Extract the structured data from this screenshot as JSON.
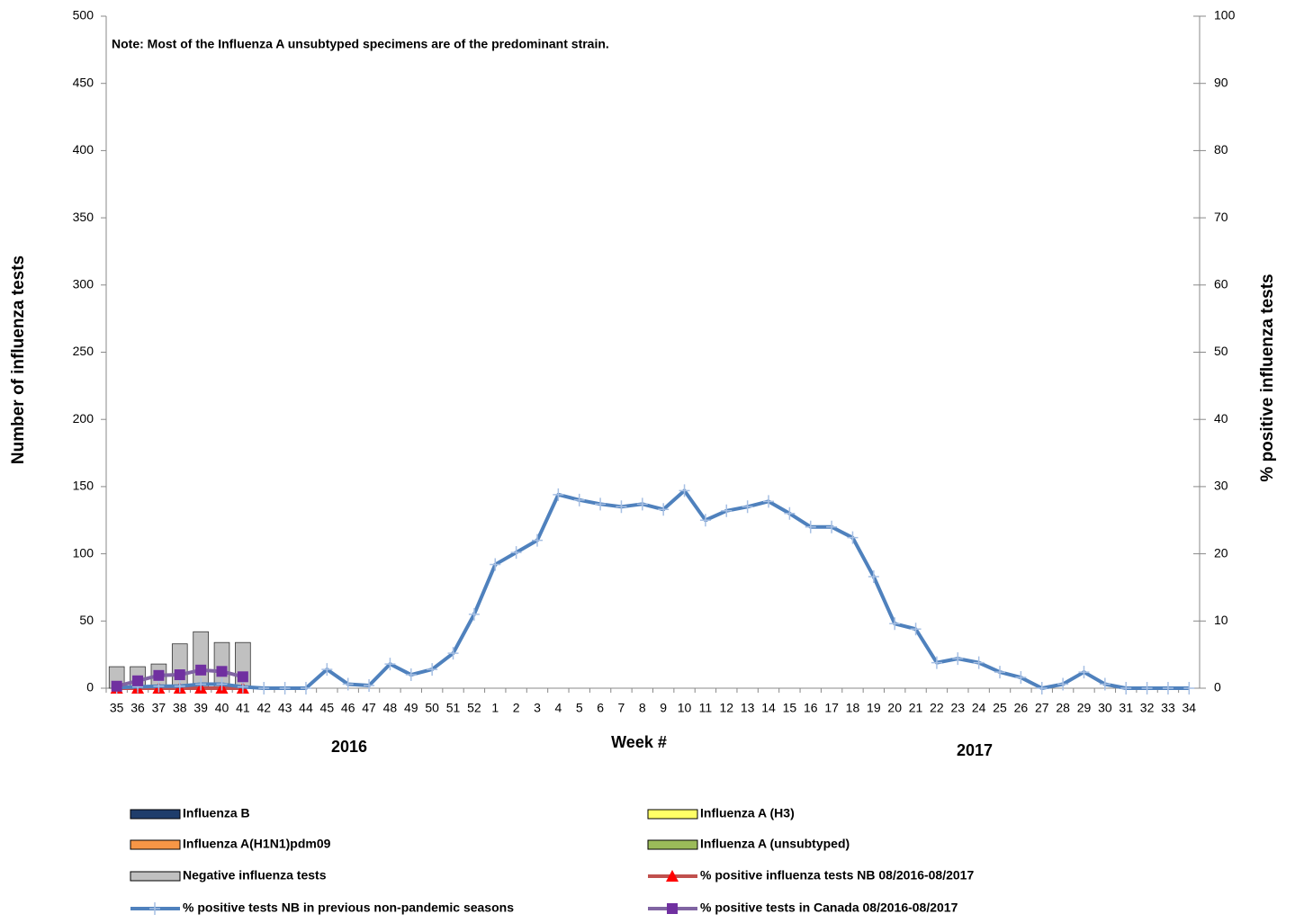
{
  "chart_data": {
    "type": "bar",
    "note": "Note: Most of the  Influenza A unsubtyped specimens are of the predominant strain.",
    "x_label": "Week #",
    "y_label": "Number of influenza tests",
    "y2_label": "% positive influenza tests",
    "year_labels": [
      "2016",
      "2017"
    ],
    "categories": [
      "35",
      "36",
      "37",
      "38",
      "39",
      "40",
      "41",
      "42",
      "43",
      "44",
      "45",
      "46",
      "47",
      "48",
      "49",
      "50",
      "51",
      "52",
      "1",
      "2",
      "3",
      "4",
      "5",
      "6",
      "7",
      "8",
      "9",
      "10",
      "11",
      "12",
      "13",
      "14",
      "15",
      "16",
      "17",
      "18",
      "19",
      "20",
      "21",
      "22",
      "23",
      "24",
      "25",
      "26",
      "27",
      "28",
      "29",
      "30",
      "31",
      "32",
      "33",
      "34"
    ],
    "ylim": [
      0,
      500
    ],
    "yticks": [
      0,
      50,
      100,
      150,
      200,
      250,
      300,
      350,
      400,
      450,
      500
    ],
    "y2lim": [
      0,
      100
    ],
    "y2ticks": [
      0,
      10,
      20,
      30,
      40,
      50,
      60,
      70,
      80,
      90,
      100
    ],
    "series": [
      {
        "name": "Influenza B",
        "type": "bar",
        "color": "#1f3d6b",
        "values": [
          0,
          0,
          0,
          0,
          0,
          0,
          0,
          null,
          null,
          null,
          null,
          null,
          null,
          null,
          null,
          null,
          null,
          null,
          null,
          null,
          null,
          null,
          null,
          null,
          null,
          null,
          null,
          null,
          null,
          null,
          null,
          null,
          null,
          null,
          null,
          null,
          null,
          null,
          null,
          null,
          null,
          null,
          null,
          null,
          null,
          null,
          null,
          null,
          null,
          null,
          null,
          null
        ]
      },
      {
        "name": "Influenza A (H3)",
        "type": "bar",
        "color": "#ffff66",
        "values": [
          0,
          0,
          0,
          0,
          0,
          0,
          0,
          null,
          null,
          null,
          null,
          null,
          null,
          null,
          null,
          null,
          null,
          null,
          null,
          null,
          null,
          null,
          null,
          null,
          null,
          null,
          null,
          null,
          null,
          null,
          null,
          null,
          null,
          null,
          null,
          null,
          null,
          null,
          null,
          null,
          null,
          null,
          null,
          null,
          null,
          null,
          null,
          null,
          null,
          null,
          null,
          null
        ]
      },
      {
        "name": "Influenza A(H1N1)pdm09",
        "type": "bar",
        "color": "#f79646",
        "values": [
          0,
          0,
          0,
          0,
          0,
          0,
          0,
          null,
          null,
          null,
          null,
          null,
          null,
          null,
          null,
          null,
          null,
          null,
          null,
          null,
          null,
          null,
          null,
          null,
          null,
          null,
          null,
          null,
          null,
          null,
          null,
          null,
          null,
          null,
          null,
          null,
          null,
          null,
          null,
          null,
          null,
          null,
          null,
          null,
          null,
          null,
          null,
          null,
          null,
          null,
          null,
          null
        ]
      },
      {
        "name": "Influenza A (unsubtyped)",
        "type": "bar",
        "color": "#9bbb59",
        "values": [
          0,
          0,
          0,
          0,
          0,
          0,
          0,
          null,
          null,
          null,
          null,
          null,
          null,
          null,
          null,
          null,
          null,
          null,
          null,
          null,
          null,
          null,
          null,
          null,
          null,
          null,
          null,
          null,
          null,
          null,
          null,
          null,
          null,
          null,
          null,
          null,
          null,
          null,
          null,
          null,
          null,
          null,
          null,
          null,
          null,
          null,
          null,
          null,
          null,
          null,
          null,
          null
        ]
      },
      {
        "name": "Negative influenza tests",
        "type": "bar",
        "color": "#c0c0c0",
        "values": [
          16,
          16,
          18,
          33,
          42,
          34,
          34,
          null,
          null,
          null,
          null,
          null,
          null,
          null,
          null,
          null,
          null,
          null,
          null,
          null,
          null,
          null,
          null,
          null,
          null,
          null,
          null,
          null,
          null,
          null,
          null,
          null,
          null,
          null,
          null,
          null,
          null,
          null,
          null,
          null,
          null,
          null,
          null,
          null,
          null,
          null,
          null,
          null,
          null,
          null,
          null,
          null
        ]
      },
      {
        "name": "% positive influenza tests NB 08/2016-08/2017",
        "type": "line",
        "axis": "y2",
        "color": "#c0504d",
        "marker": "triangle",
        "marker_color": "#ff0000",
        "values": [
          0,
          0,
          0,
          0,
          0,
          0,
          0,
          null,
          null,
          null,
          null,
          null,
          null,
          null,
          null,
          null,
          null,
          null,
          null,
          null,
          null,
          null,
          null,
          null,
          null,
          null,
          null,
          null,
          null,
          null,
          null,
          null,
          null,
          null,
          null,
          null,
          null,
          null,
          null,
          null,
          null,
          null,
          null,
          null,
          null,
          null,
          null,
          null,
          null,
          null,
          null,
          null
        ]
      },
      {
        "name": "% positive tests NB in previous non-pandemic seasons",
        "type": "line",
        "axis": "y2",
        "color": "#4f81bd",
        "marker": "plus",
        "marker_color": "#a6bfe3",
        "values": [
          0.1,
          0.2,
          0.3,
          0.3,
          0.6,
          0.6,
          0.2,
          0,
          0,
          0,
          2.8,
          0.6,
          0.4,
          3.6,
          2.0,
          2.8,
          5.2,
          11,
          18.4,
          20.2,
          22,
          28.8,
          28,
          27.4,
          27,
          27.4,
          26.6,
          29.4,
          25,
          26.4,
          27,
          27.8,
          26,
          24,
          24,
          22.4,
          16.6,
          9.6,
          8.8,
          3.8,
          4.4,
          3.8,
          2.4,
          1.6,
          0,
          0.6,
          2.4,
          0.6,
          0,
          0,
          0,
          0
        ]
      },
      {
        "name": "% positive tests  in Canada 08/2016-08/2017",
        "type": "line",
        "axis": "y2",
        "color": "#8064a2",
        "marker": "square",
        "marker_color": "#7030a0",
        "values": [
          0.3,
          1.1,
          1.9,
          2.0,
          2.7,
          2.5,
          1.7,
          null,
          null,
          null,
          null,
          null,
          null,
          null,
          null,
          null,
          null,
          null,
          null,
          null,
          null,
          null,
          null,
          null,
          null,
          null,
          null,
          null,
          null,
          null,
          null,
          null,
          null,
          null,
          null,
          null,
          null,
          null,
          null,
          null,
          null,
          null,
          null,
          null,
          null,
          null,
          null,
          null,
          null,
          null,
          null,
          null
        ]
      }
    ]
  }
}
